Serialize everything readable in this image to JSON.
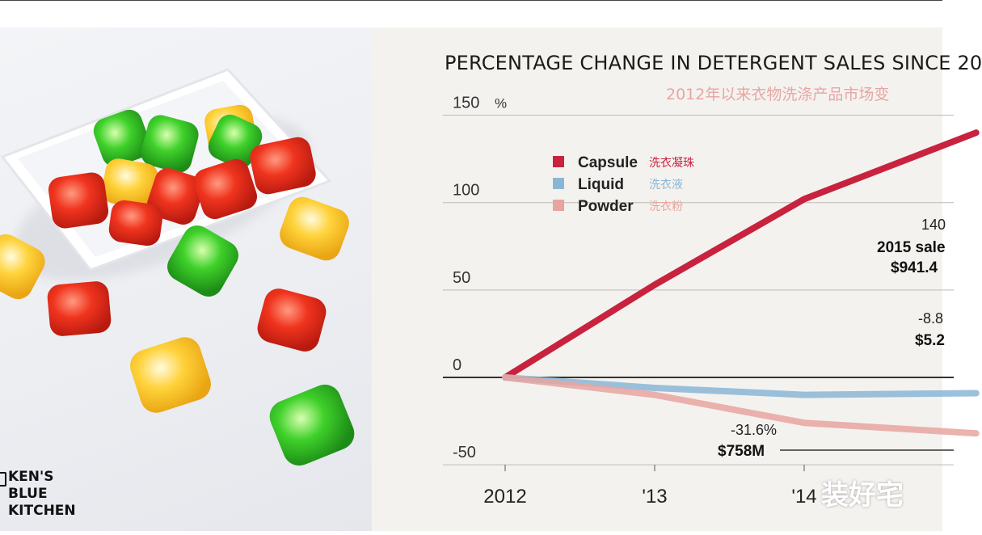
{
  "brand": {
    "logo_lines": [
      "KEN'S",
      "BLUE",
      "KITCHEN"
    ]
  },
  "watermark": "装好宅",
  "colors": {
    "capsule": "#c8223f",
    "liquid": "#8ab6d6",
    "powder": "#e8a4a0",
    "axis": "#333333",
    "grid": "#bfbab4",
    "subtitle": "#e7a6a3"
  },
  "chart_data": {
    "type": "line",
    "title": "PERCENTAGE CHANGE IN DETERGENT SALES SINCE 20",
    "subtitle": "2012年以来衣物洗涤产品市场变",
    "y_unit": "%",
    "ylim": [
      -50,
      150
    ],
    "yticks": [
      150,
      100,
      50,
      0,
      -50
    ],
    "ytick_labels": [
      "150",
      "100",
      "50",
      "0",
      "-50"
    ],
    "x": [
      "2012",
      "'13",
      "'14"
    ],
    "xlim": [
      2012,
      2015.15
    ],
    "series": [
      {
        "name": "Capsule",
        "name_cn": "洗衣凝珠",
        "key": "capsule",
        "x": [
          2012,
          2013,
          2014,
          2015.15
        ],
        "values": [
          0,
          53,
          102,
          140
        ]
      },
      {
        "name": "Liquid",
        "name_cn": "洗衣液",
        "key": "liquid",
        "x": [
          2012,
          2013,
          2014,
          2015.15
        ],
        "values": [
          0,
          -6,
          -10,
          -9
        ]
      },
      {
        "name": "Powder",
        "name_cn": "洗衣粉",
        "key": "powder",
        "x": [
          2012,
          2013,
          2014,
          2015.15
        ],
        "values": [
          0,
          -10,
          -26,
          -32
        ]
      }
    ],
    "annotations": {
      "capsule_pct": "140",
      "capsule_sales_label": "2015 sale",
      "capsule_sales_value": "$941.4",
      "liquid_pct": "-8.8",
      "liquid_sales_value": "$5.2",
      "powder_pct": "-31.6%",
      "powder_sales_value": "$758M"
    }
  }
}
